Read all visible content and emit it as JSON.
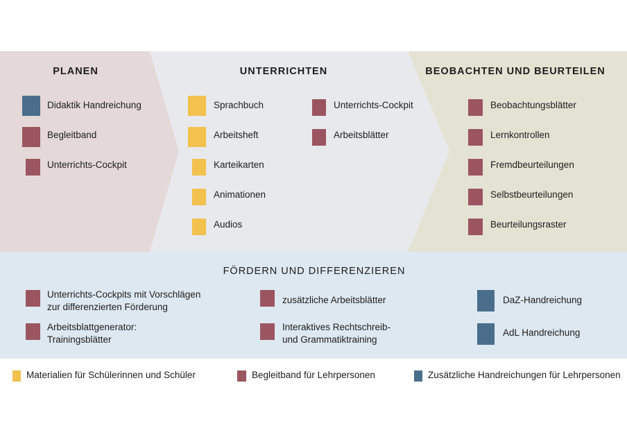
{
  "colors": {
    "student_materials": "#f2c14e",
    "teacher_companion": "#9b5561",
    "teacher_handouts": "#4a6d8c",
    "planen_bg": "#e4d8d8",
    "unterrichten_bg": "#e8e9ed",
    "beobachten_bg": "#e4e2d3",
    "foerdern_bg": "#dde8f1"
  },
  "planen": {
    "title": "PLANEN",
    "items": [
      "Didaktik Handreichung",
      "Begleitband",
      "Unterrichts-Cockpit"
    ]
  },
  "unterrichten": {
    "title": "UNTERRICHTEN",
    "col1": [
      "Sprachbuch",
      "Arbeitsheft",
      "Karteikarten",
      "Animationen",
      "Audios"
    ],
    "col2": [
      "Unterrichts-Cockpit",
      "Arbeitsblätter"
    ]
  },
  "beobachten": {
    "title": "BEOBACHTEN UND BEURTEILEN",
    "items": [
      "Beobachtungsblätter",
      "Lernkontrollen",
      "Fremdbeurteilungen",
      "Selbstbeurteilungen",
      "Beurteilungsraster"
    ]
  },
  "foerdern": {
    "title": "FÖRDERN UND DIFFERENZIEREN",
    "items": [
      {
        "line1": "Unterrichts-Cockpits mit Vorschlägen",
        "line2": "zur differenzierten Förderung"
      },
      {
        "line1": "Arbeitsblattgenerator:",
        "line2": "Trainingsblätter"
      },
      {
        "line1": "zusätzliche Arbeitsblätter"
      },
      {
        "line1": "Interaktives Rechtschreib-",
        "line2": "und Grammatiktraining"
      },
      {
        "line1": "DaZ-Handreichung"
      },
      {
        "line1": "AdL Handreichung"
      }
    ]
  },
  "legend": [
    "Materialien für Schülerinnen und Schüler",
    "Begleitband für Lehrpersonen",
    "Zusätzliche Handreichungen für Lehrpersonen"
  ]
}
